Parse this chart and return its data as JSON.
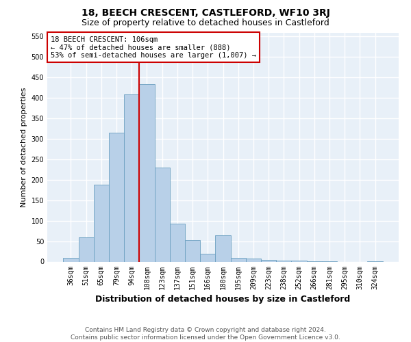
{
  "title": "18, BEECH CRESCENT, CASTLEFORD, WF10 3RJ",
  "subtitle": "Size of property relative to detached houses in Castleford",
  "xlabel": "Distribution of detached houses by size in Castleford",
  "ylabel": "Number of detached properties",
  "bar_labels": [
    "36sqm",
    "51sqm",
    "65sqm",
    "79sqm",
    "94sqm",
    "108sqm",
    "123sqm",
    "137sqm",
    "151sqm",
    "166sqm",
    "180sqm",
    "195sqm",
    "209sqm",
    "223sqm",
    "238sqm",
    "252sqm",
    "266sqm",
    "281sqm",
    "295sqm",
    "310sqm",
    "324sqm"
  ],
  "bar_values": [
    10,
    60,
    188,
    315,
    408,
    433,
    230,
    93,
    53,
    20,
    65,
    10,
    8,
    5,
    3,
    2,
    1,
    1,
    0,
    0,
    1
  ],
  "bar_color": "#b8d0e8",
  "bar_edge_color": "#6a9fc0",
  "vline_x_index": 5,
  "vline_color": "#cc0000",
  "annotation_text": "18 BEECH CRESCENT: 106sqm\n← 47% of detached houses are smaller (888)\n53% of semi-detached houses are larger (1,007) →",
  "annotation_box_color": "#cc0000",
  "ylim": [
    0,
    560
  ],
  "yticks": [
    0,
    50,
    100,
    150,
    200,
    250,
    300,
    350,
    400,
    450,
    500,
    550
  ],
  "background_color": "#e8f0f8",
  "grid_color": "#ffffff",
  "footer": "Contains HM Land Registry data © Crown copyright and database right 2024.\nContains public sector information licensed under the Open Government Licence v3.0.",
  "title_fontsize": 10,
  "subtitle_fontsize": 9,
  "xlabel_fontsize": 9,
  "ylabel_fontsize": 8,
  "tick_fontsize": 7,
  "annotation_fontsize": 7.5,
  "footer_fontsize": 6.5
}
